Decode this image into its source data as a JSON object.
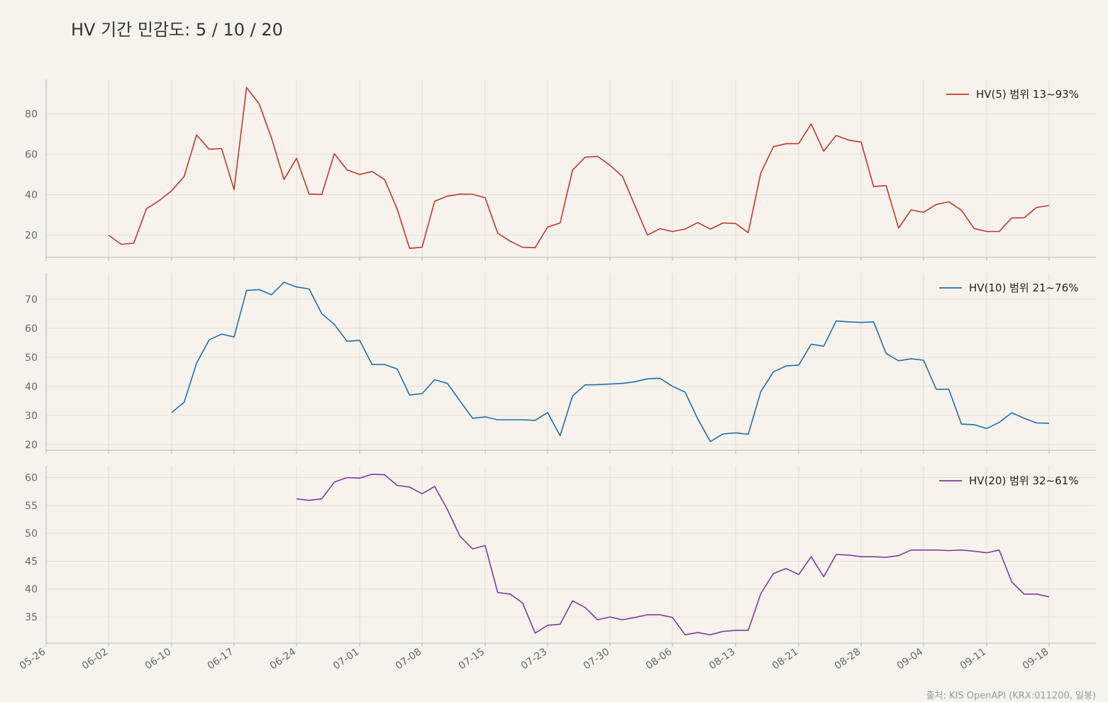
{
  "title": "HV 기간 민감도: 5 / 10 / 20",
  "source": "출처: KIS OpenAPI (KRX:011200, 일봉)",
  "chart_data": {
    "type": "line",
    "x_ticks": [
      "05-26",
      "06-02",
      "06-10",
      "06-17",
      "06-24",
      "07-01",
      "07-08",
      "07-15",
      "07-23",
      "07-30",
      "08-06",
      "08-13",
      "08-21",
      "08-28",
      "09-04",
      "09-11",
      "09-18"
    ],
    "panels": [
      {
        "name": "HV(5) 범위 13~93%",
        "color": "#c0392b",
        "ylim": [
          9,
          97
        ],
        "yticks": [
          20,
          40,
          60,
          80
        ],
        "start_index": 5,
        "values": [
          20,
          15.5,
          16,
          33,
          37,
          42,
          49,
          69.5,
          62.5,
          62.8,
          42.5,
          93,
          85,
          68,
          47.5,
          58,
          40.3,
          40.1,
          60.3,
          52.3,
          50,
          51.5,
          47.5,
          33,
          13.5,
          14,
          36.8,
          39.3,
          40.3,
          40.2,
          38.5,
          21,
          17,
          14,
          13.8,
          24,
          26,
          52.2,
          58.5,
          59,
          54.5,
          49,
          34.5,
          20,
          23.2,
          21.8,
          23,
          26.2,
          23,
          26,
          25.8,
          21.2,
          50.8,
          63.8,
          65.2,
          65.3,
          75,
          61.5,
          69.3,
          67,
          66,
          44,
          44.5,
          23.5,
          32.5,
          31.3,
          35.2,
          36.5,
          32.3,
          23.3,
          21.8,
          21.8,
          28.5,
          28.6,
          33.7,
          34.6
        ]
      },
      {
        "name": "HV(10) 범위 21~76%",
        "color": "#1f6fa8",
        "ylim": [
          18,
          79
        ],
        "yticks": [
          20,
          30,
          40,
          50,
          60,
          70
        ],
        "start_index": 10,
        "values": [
          31,
          34.5,
          48,
          56,
          58,
          57,
          73,
          73.3,
          71.5,
          75.8,
          74.2,
          73.5,
          65,
          61.3,
          55.5,
          55.8,
          47.5,
          47.5,
          46,
          37,
          37.5,
          42.3,
          41,
          35,
          29,
          29.5,
          28.5,
          28.5,
          28.5,
          28.3,
          31,
          23,
          36.7,
          40.5,
          40.6,
          40.8,
          41,
          41.6,
          42.6,
          42.8,
          40,
          38,
          28.8,
          21,
          23.6,
          24,
          23.5,
          38.2,
          45,
          47,
          47.3,
          54.5,
          53.8,
          62.5,
          62.2,
          62,
          62.2,
          51.3,
          48.8,
          49.5,
          49,
          39,
          39,
          27,
          26.8,
          25.5,
          27.6,
          30.9,
          29,
          27.4,
          27.3
        ]
      },
      {
        "name": "HV(20) 범위 32~61%",
        "color": "#7d3c98",
        "ylim": [
          30.3,
          62.1
        ],
        "yticks": [
          35,
          40,
          45,
          50,
          55,
          60
        ],
        "start_index": 20,
        "values": [
          56.2,
          55.9,
          56.2,
          59.2,
          60,
          59.9,
          60.6,
          60.5,
          58.6,
          58.3,
          57.1,
          58.4,
          54.3,
          49.5,
          47.2,
          47.8,
          39.4,
          39.1,
          37.5,
          32.1,
          33.5,
          33.7,
          37.9,
          36.7,
          34.5,
          35,
          34.5,
          34.9,
          35.4,
          35.4,
          34.9,
          31.8,
          32.2,
          31.8,
          32.4,
          32.6,
          32.6,
          39.2,
          42.8,
          43.7,
          42.6,
          45.8,
          42.2,
          46.2,
          46.1,
          45.8,
          45.8,
          45.7,
          46,
          47,
          47,
          47,
          46.9,
          47,
          46.8,
          46.5,
          47,
          41.3,
          39.1,
          39.1,
          38.6
        ]
      }
    ]
  }
}
